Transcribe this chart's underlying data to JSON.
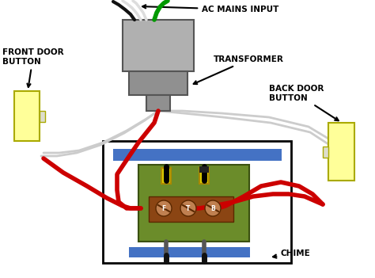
{
  "bg_color": "#ffffff",
  "transformer_body_color": "#b0b0b0",
  "transformer_secondary_color": "#909090",
  "button_color": "#ffff99",
  "button_border": "#aaaa00",
  "chime_box_color": "#ffffff",
  "chime_box_border": "#000000",
  "chime_board_color": "#6b8c2a",
  "chime_terminal_block_color": "#8b4513",
  "blue_bar_color": "#4472c4",
  "red_wire_color": "#cc0000",
  "white_wire_color": "#cccccc",
  "green_wire_color": "#009900",
  "black_wire_color": "#111111",
  "label_color": "#000000",
  "arrow_color": "#000000",
  "labels": {
    "ac_mains": "AC MAINS INPUT",
    "transformer": "TRANSFORMER",
    "front_door": "FRONT DOOR\nBUTTON",
    "back_door": "BACK DOOR\nBUTTON",
    "chime": "CHIME"
  },
  "terminal_labels": [
    "F",
    "T",
    "B"
  ]
}
